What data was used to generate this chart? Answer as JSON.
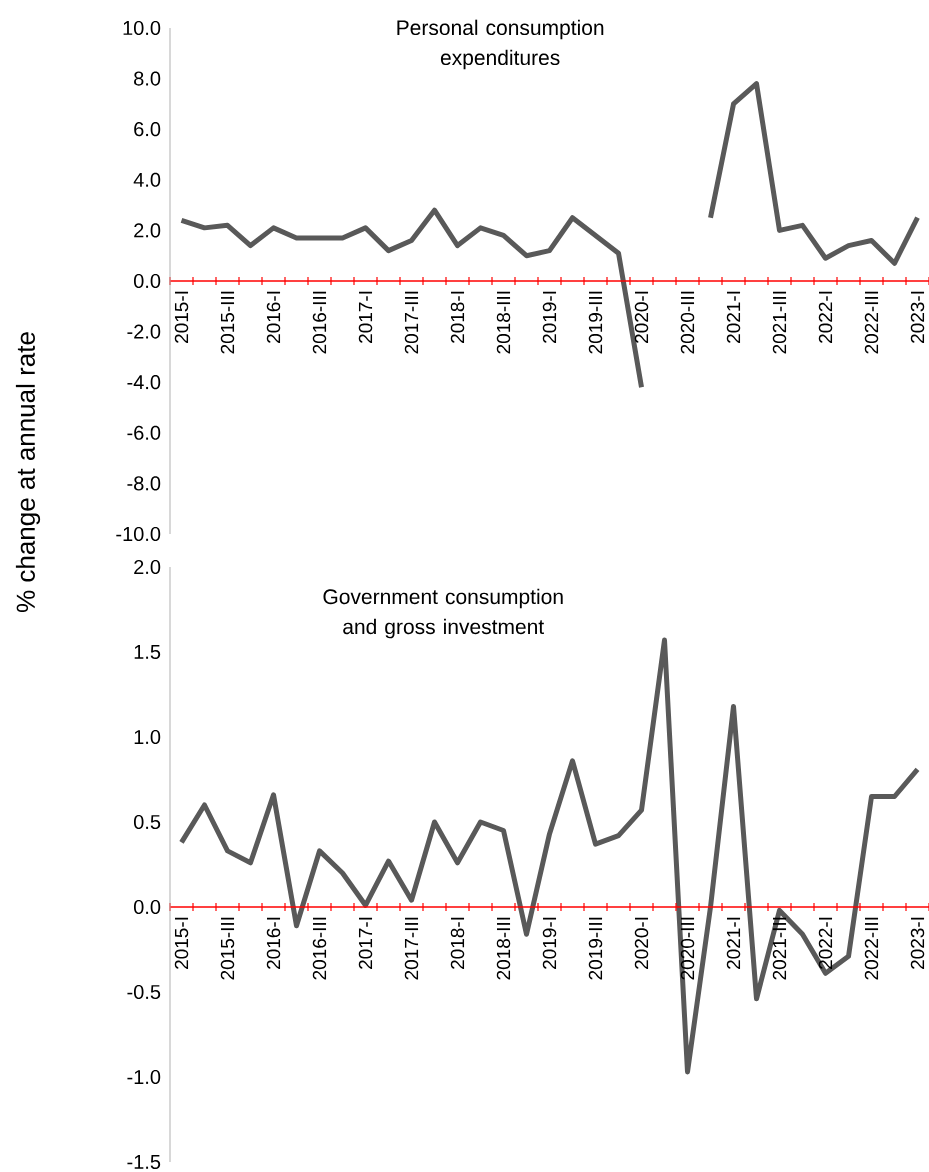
{
  "chart_data": [
    {
      "type": "line",
      "title": "Personal consumption expenditures",
      "ylabel": "% change at annual rate",
      "categories": [
        "2015-I",
        null,
        "2015-III",
        null,
        "2016-I",
        null,
        "2016-III",
        null,
        "2017-I",
        null,
        "2017-III",
        null,
        "2018-I",
        null,
        "2018-III",
        null,
        "2019-I",
        null,
        "2019-III",
        null,
        "2020-I",
        null,
        "2020-III",
        null,
        "2021-I",
        null,
        "2021-III",
        null,
        "2022-I",
        null,
        "2022-III",
        null,
        "2023-I"
      ],
      "series": [
        {
          "color": "#595959",
          "values": [
            2.4,
            2.1,
            2.2,
            1.4,
            2.1,
            1.7,
            1.7,
            1.7,
            2.1,
            1.2,
            1.6,
            2.8,
            1.4,
            2.1,
            1.8,
            1.0,
            1.2,
            2.5,
            1.8,
            1.1,
            -4.2,
            null,
            null,
            2.5,
            7.0,
            7.8,
            2.0,
            2.2,
            0.9,
            1.4,
            1.6,
            0.7,
            2.5
          ]
        }
      ],
      "ylim": [
        -10,
        10
      ],
      "yticks": [
        {
          "value": -10,
          "label": "-10.0"
        },
        {
          "value": -8,
          "label": "-8.0"
        },
        {
          "value": -6,
          "label": "-6.0"
        },
        {
          "value": -4,
          "label": "-4.0"
        },
        {
          "value": -2,
          "label": "-2.0"
        },
        {
          "value": 0,
          "label": "0.0"
        },
        {
          "value": 2,
          "label": "2.0"
        },
        {
          "value": 4,
          "label": "4.0"
        },
        {
          "value": 6,
          "label": "6.0"
        },
        {
          "value": 8,
          "label": "8.0"
        },
        {
          "value": 10,
          "label": "10.0"
        }
      ]
    },
    {
      "type": "line",
      "title": "Government consumption and gross investment",
      "categories": [
        "2015-I",
        null,
        "2015-III",
        null,
        "2016-I",
        null,
        "2016-III",
        null,
        "2017-I",
        null,
        "2017-III",
        null,
        "2018-I",
        null,
        "2018-III",
        null,
        "2019-I",
        null,
        "2019-III",
        null,
        "2020-I",
        null,
        "2020-III",
        null,
        "2021-I",
        null,
        "2021-III",
        null,
        "2022-I",
        null,
        "2022-III",
        null,
        "2023-I"
      ],
      "series": [
        {
          "color": "#595959",
          "values": [
            0.38,
            0.6,
            0.33,
            0.26,
            0.66,
            -0.11,
            0.33,
            0.2,
            0.01,
            0.27,
            0.04,
            0.5,
            0.26,
            0.5,
            0.45,
            -0.16,
            0.43,
            0.86,
            0.37,
            0.42,
            0.57,
            1.57,
            -0.97,
            0.0,
            1.18,
            -0.54,
            -0.02,
            -0.16,
            -0.39,
            -0.29,
            0.65,
            0.65,
            0.81
          ]
        }
      ],
      "ylim": [
        -1.5,
        2.0
      ],
      "yticks": [
        {
          "value": -1.5,
          "label": "-1.5"
        },
        {
          "value": -1.0,
          "label": "-1.0"
        },
        {
          "value": -0.5,
          "label": "-0.5"
        },
        {
          "value": 0,
          "label": "0.0"
        },
        {
          "value": 0.5,
          "label": "0.5"
        },
        {
          "value": 1.0,
          "label": "1.0"
        },
        {
          "value": 1.5,
          "label": "1.5"
        },
        {
          "value": 2.0,
          "label": "2.0"
        }
      ]
    }
  ]
}
